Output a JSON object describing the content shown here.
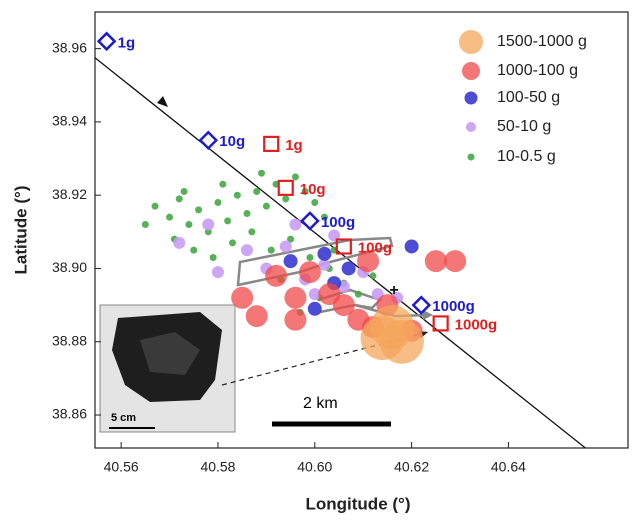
{
  "chart_data": {
    "type": "scatter",
    "xlabel": "Longitude (°)",
    "ylabel": "Latitude (°)",
    "xlim": [
      40.5546,
      40.6647
    ],
    "ylim": [
      38.851,
      38.97
    ],
    "xticks": [
      40.56,
      40.58,
      {
        "value": 40.6,
        "label": "40.60"
      },
      40.62,
      40.64
    ],
    "yticks": [
      38.86,
      38.88,
      {
        "value": 38.9,
        "label": "38.90"
      },
      38.92,
      38.94,
      38.96
    ],
    "legend": "upper right",
    "series": [
      {
        "name": "1500-1000 g",
        "color": "#f5a55c",
        "x": [
          40.614,
          40.618,
          40.616
        ],
        "y": [
          38.881,
          38.88,
          38.884
        ]
      },
      {
        "name": "1000-100 g",
        "color": "#f04848",
        "x": [
          40.585,
          40.588,
          40.592,
          40.596,
          40.599,
          40.603,
          40.606,
          40.609,
          40.612,
          40.615,
          40.629,
          40.625,
          40.596,
          40.611,
          40.62
        ],
        "y": [
          38.892,
          38.887,
          38.898,
          38.892,
          38.899,
          38.893,
          38.89,
          38.886,
          38.884,
          38.89,
          38.902,
          38.902,
          38.886,
          38.902,
          38.883
        ]
      },
      {
        "name": "100-50 g",
        "color": "#3838d0",
        "x": [
          40.602,
          40.607,
          40.6,
          40.62,
          40.595,
          40.604
        ],
        "y": [
          38.904,
          38.9,
          38.889,
          38.906,
          38.902,
          38.896
        ]
      },
      {
        "name": "50-10 g",
        "color": "#c99cf5",
        "x": [
          40.572,
          40.578,
          40.586,
          40.59,
          40.594,
          40.598,
          40.602,
          40.606,
          40.61,
          40.613,
          40.617,
          40.596,
          40.604,
          40.58,
          40.6
        ],
        "y": [
          38.907,
          38.912,
          38.905,
          38.9,
          38.906,
          38.897,
          38.901,
          38.895,
          38.899,
          38.893,
          38.892,
          38.912,
          38.909,
          38.899,
          38.893
        ]
      },
      {
        "name": "10-0.5 g",
        "color": "#45a845",
        "x": [
          40.567,
          40.57,
          40.572,
          40.574,
          40.576,
          40.578,
          40.58,
          40.582,
          40.584,
          40.586,
          40.588,
          40.59,
          40.592,
          40.594,
          40.596,
          40.598,
          40.6,
          40.602,
          40.571,
          40.575,
          40.579,
          40.583,
          40.587,
          40.591,
          40.595,
          40.599,
          40.603,
          40.606,
          40.609,
          40.597,
          40.601,
          40.612,
          40.573,
          40.581,
          40.589,
          40.565,
          40.593,
          40.604
        ],
        "y": [
          38.917,
          38.914,
          38.919,
          38.912,
          38.916,
          38.91,
          38.918,
          38.913,
          38.92,
          38.915,
          38.921,
          38.917,
          38.923,
          38.919,
          38.925,
          38.921,
          38.918,
          38.914,
          38.908,
          38.905,
          38.903,
          38.907,
          38.91,
          38.905,
          38.908,
          38.903,
          38.9,
          38.896,
          38.893,
          38.888,
          38.892,
          38.898,
          38.921,
          38.923,
          38.926,
          38.912,
          38.897,
          38.905
        ]
      }
    ],
    "diamonds": {
      "color": "#1c1ccc",
      "x": [
        40.557,
        40.578,
        40.599,
        40.622
      ],
      "y": [
        38.962,
        38.935,
        38.913,
        38.89
      ],
      "labels": [
        "1g",
        "10g",
        "100g",
        "1000g"
      ]
    },
    "squares": {
      "color": "#e02020",
      "x": [
        40.591,
        40.594,
        40.606,
        40.626
      ],
      "y": [
        38.934,
        38.922,
        38.906,
        38.885
      ],
      "labels": [
        "1g",
        "10g",
        "100g",
        "1000g"
      ]
    },
    "trajectory": {
      "x": [
        40.5546,
        40.6559
      ],
      "y": [
        38.9575,
        38.851
      ]
    },
    "scale_bar": "2 km",
    "inset_scale": "5 cm"
  }
}
